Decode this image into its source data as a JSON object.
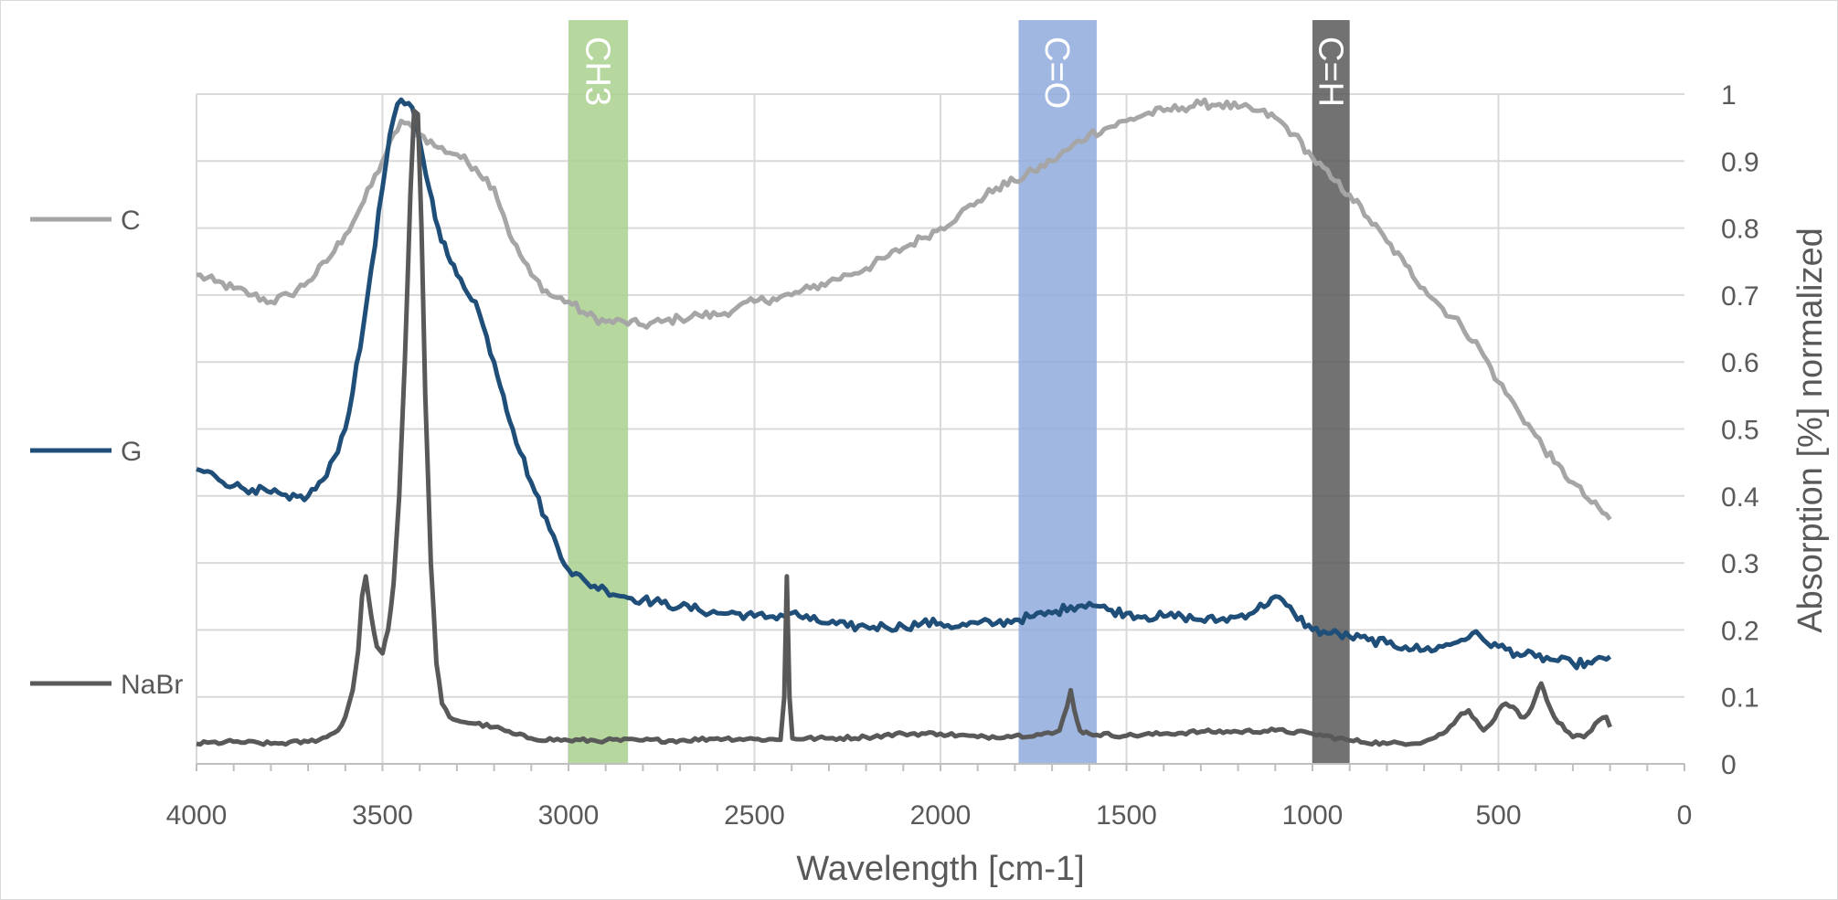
{
  "chart_data": {
    "type": "line",
    "title": "",
    "xlabel": "Wavelength [cm-1]",
    "ylabel": "Absorption [%] normalized",
    "xlim": [
      4000,
      0
    ],
    "ylim": [
      0,
      1
    ],
    "x_reversed": true,
    "y_axis_side": "right",
    "x_ticks": [
      4000,
      3500,
      3000,
      2500,
      2000,
      1500,
      1000,
      500,
      0
    ],
    "y_ticks": [
      0,
      0.1,
      0.2,
      0.3,
      0.4,
      0.5,
      0.6,
      0.7,
      0.8,
      0.9,
      1
    ],
    "grid": true,
    "legend": "left",
    "bands": [
      {
        "label": "CH3",
        "from": 3000,
        "to": 2840,
        "color": "#a9d18e",
        "opacity": 0.85
      },
      {
        "label": "C=O",
        "from": 1790,
        "to": 1580,
        "color": "#8faadc",
        "opacity": 0.85
      },
      {
        "label": "C=H",
        "from": 1000,
        "to": 900,
        "color": "#595959",
        "opacity": 0.85
      }
    ],
    "series": [
      {
        "name": "C",
        "color": "#a6a6a6",
        "points": [
          [
            4000,
            0.73
          ],
          [
            3950,
            0.72
          ],
          [
            3900,
            0.71
          ],
          [
            3850,
            0.7
          ],
          [
            3800,
            0.69
          ],
          [
            3750,
            0.7
          ],
          [
            3700,
            0.72
          ],
          [
            3650,
            0.75
          ],
          [
            3600,
            0.79
          ],
          [
            3550,
            0.84
          ],
          [
            3500,
            0.9
          ],
          [
            3450,
            0.96
          ],
          [
            3400,
            0.94
          ],
          [
            3350,
            0.92
          ],
          [
            3300,
            0.91
          ],
          [
            3250,
            0.89
          ],
          [
            3200,
            0.86
          ],
          [
            3175,
            0.82
          ],
          [
            3150,
            0.78
          ],
          [
            3100,
            0.73
          ],
          [
            3050,
            0.7
          ],
          [
            3000,
            0.69
          ],
          [
            2950,
            0.67
          ],
          [
            2900,
            0.66
          ],
          [
            2850,
            0.66
          ],
          [
            2800,
            0.655
          ],
          [
            2750,
            0.66
          ],
          [
            2700,
            0.665
          ],
          [
            2650,
            0.67
          ],
          [
            2600,
            0.67
          ],
          [
            2550,
            0.68
          ],
          [
            2500,
            0.69
          ],
          [
            2450,
            0.695
          ],
          [
            2400,
            0.7
          ],
          [
            2350,
            0.71
          ],
          [
            2300,
            0.72
          ],
          [
            2250,
            0.73
          ],
          [
            2200,
            0.74
          ],
          [
            2150,
            0.755
          ],
          [
            2100,
            0.77
          ],
          [
            2050,
            0.785
          ],
          [
            2000,
            0.8
          ],
          [
            1950,
            0.82
          ],
          [
            1900,
            0.84
          ],
          [
            1850,
            0.86
          ],
          [
            1800,
            0.87
          ],
          [
            1750,
            0.885
          ],
          [
            1700,
            0.9
          ],
          [
            1650,
            0.92
          ],
          [
            1600,
            0.94
          ],
          [
            1550,
            0.95
          ],
          [
            1500,
            0.96
          ],
          [
            1450,
            0.97
          ],
          [
            1400,
            0.975
          ],
          [
            1350,
            0.98
          ],
          [
            1300,
            0.985
          ],
          [
            1250,
            0.985
          ],
          [
            1200,
            0.98
          ],
          [
            1150,
            0.975
          ],
          [
            1100,
            0.965
          ],
          [
            1050,
            0.94
          ],
          [
            1000,
            0.905
          ],
          [
            950,
            0.875
          ],
          [
            900,
            0.85
          ],
          [
            850,
            0.815
          ],
          [
            800,
            0.78
          ],
          [
            750,
            0.745
          ],
          [
            700,
            0.71
          ],
          [
            650,
            0.68
          ],
          [
            600,
            0.655
          ],
          [
            550,
            0.62
          ],
          [
            500,
            0.57
          ],
          [
            450,
            0.53
          ],
          [
            400,
            0.49
          ],
          [
            350,
            0.45
          ],
          [
            300,
            0.42
          ],
          [
            250,
            0.39
          ],
          [
            200,
            0.365
          ]
        ]
      },
      {
        "name": "G",
        "color": "#1f4e79",
        "points": [
          [
            4000,
            0.44
          ],
          [
            3950,
            0.43
          ],
          [
            3900,
            0.415
          ],
          [
            3850,
            0.41
          ],
          [
            3800,
            0.405
          ],
          [
            3750,
            0.395
          ],
          [
            3700,
            0.4
          ],
          [
            3650,
            0.43
          ],
          [
            3600,
            0.5
          ],
          [
            3560,
            0.62
          ],
          [
            3530,
            0.74
          ],
          [
            3500,
            0.86
          ],
          [
            3480,
            0.94
          ],
          [
            3460,
            0.985
          ],
          [
            3440,
            0.985
          ],
          [
            3420,
            0.98
          ],
          [
            3400,
            0.93
          ],
          [
            3375,
            0.86
          ],
          [
            3350,
            0.8
          ],
          [
            3325,
            0.76
          ],
          [
            3300,
            0.73
          ],
          [
            3250,
            0.69
          ],
          [
            3200,
            0.6
          ],
          [
            3175,
            0.55
          ],
          [
            3150,
            0.5
          ],
          [
            3100,
            0.42
          ],
          [
            3050,
            0.35
          ],
          [
            3000,
            0.29
          ],
          [
            2950,
            0.27
          ],
          [
            2900,
            0.26
          ],
          [
            2850,
            0.25
          ],
          [
            2800,
            0.245
          ],
          [
            2750,
            0.24
          ],
          [
            2700,
            0.235
          ],
          [
            2650,
            0.23
          ],
          [
            2600,
            0.225
          ],
          [
            2550,
            0.225
          ],
          [
            2500,
            0.22
          ],
          [
            2450,
            0.22
          ],
          [
            2400,
            0.225
          ],
          [
            2350,
            0.215
          ],
          [
            2300,
            0.21
          ],
          [
            2250,
            0.205
          ],
          [
            2200,
            0.205
          ],
          [
            2150,
            0.205
          ],
          [
            2100,
            0.205
          ],
          [
            2050,
            0.21
          ],
          [
            2000,
            0.21
          ],
          [
            1950,
            0.205
          ],
          [
            1900,
            0.21
          ],
          [
            1850,
            0.21
          ],
          [
            1800,
            0.215
          ],
          [
            1750,
            0.22
          ],
          [
            1700,
            0.225
          ],
          [
            1650,
            0.235
          ],
          [
            1600,
            0.24
          ],
          [
            1550,
            0.23
          ],
          [
            1500,
            0.225
          ],
          [
            1450,
            0.22
          ],
          [
            1400,
            0.22
          ],
          [
            1350,
            0.22
          ],
          [
            1300,
            0.215
          ],
          [
            1250,
            0.215
          ],
          [
            1200,
            0.22
          ],
          [
            1150,
            0.23
          ],
          [
            1100,
            0.25
          ],
          [
            1050,
            0.225
          ],
          [
            1000,
            0.2
          ],
          [
            950,
            0.195
          ],
          [
            900,
            0.19
          ],
          [
            850,
            0.185
          ],
          [
            800,
            0.18
          ],
          [
            750,
            0.175
          ],
          [
            700,
            0.17
          ],
          [
            650,
            0.175
          ],
          [
            600,
            0.185
          ],
          [
            570,
            0.195
          ],
          [
            540,
            0.185
          ],
          [
            500,
            0.175
          ],
          [
            450,
            0.165
          ],
          [
            400,
            0.16
          ],
          [
            350,
            0.155
          ],
          [
            300,
            0.15
          ],
          [
            250,
            0.15
          ],
          [
            200,
            0.16
          ]
        ]
      },
      {
        "name": "NaBr",
        "color": "#595959",
        "points": [
          [
            4000,
            0.03
          ],
          [
            3900,
            0.033
          ],
          [
            3800,
            0.03
          ],
          [
            3700,
            0.033
          ],
          [
            3650,
            0.04
          ],
          [
            3620,
            0.05
          ],
          [
            3600,
            0.07
          ],
          [
            3580,
            0.11
          ],
          [
            3565,
            0.17
          ],
          [
            3555,
            0.25
          ],
          [
            3545,
            0.28
          ],
          [
            3530,
            0.22
          ],
          [
            3515,
            0.175
          ],
          [
            3500,
            0.165
          ],
          [
            3485,
            0.2
          ],
          [
            3470,
            0.27
          ],
          [
            3455,
            0.4
          ],
          [
            3440,
            0.6
          ],
          [
            3425,
            0.85
          ],
          [
            3415,
            0.975
          ],
          [
            3405,
            0.97
          ],
          [
            3395,
            0.8
          ],
          [
            3385,
            0.55
          ],
          [
            3370,
            0.3
          ],
          [
            3355,
            0.15
          ],
          [
            3340,
            0.09
          ],
          [
            3320,
            0.07
          ],
          [
            3300,
            0.065
          ],
          [
            3250,
            0.06
          ],
          [
            3200,
            0.055
          ],
          [
            3150,
            0.045
          ],
          [
            3100,
            0.038
          ],
          [
            3000,
            0.035
          ],
          [
            2900,
            0.035
          ],
          [
            2800,
            0.035
          ],
          [
            2700,
            0.035
          ],
          [
            2600,
            0.038
          ],
          [
            2500,
            0.037
          ],
          [
            2430,
            0.036
          ],
          [
            2420,
            0.1
          ],
          [
            2413,
            0.28
          ],
          [
            2406,
            0.1
          ],
          [
            2398,
            0.038
          ],
          [
            2300,
            0.038
          ],
          [
            2200,
            0.04
          ],
          [
            2100,
            0.045
          ],
          [
            2000,
            0.045
          ],
          [
            1900,
            0.04
          ],
          [
            1800,
            0.042
          ],
          [
            1700,
            0.045
          ],
          [
            1680,
            0.05
          ],
          [
            1660,
            0.085
          ],
          [
            1650,
            0.11
          ],
          [
            1640,
            0.08
          ],
          [
            1625,
            0.05
          ],
          [
            1600,
            0.045
          ],
          [
            1500,
            0.042
          ],
          [
            1400,
            0.045
          ],
          [
            1300,
            0.048
          ],
          [
            1200,
            0.048
          ],
          [
            1100,
            0.05
          ],
          [
            1000,
            0.045
          ],
          [
            900,
            0.035
          ],
          [
            800,
            0.03
          ],
          [
            700,
            0.033
          ],
          [
            650,
            0.045
          ],
          [
            620,
            0.06
          ],
          [
            600,
            0.075
          ],
          [
            580,
            0.08
          ],
          [
            560,
            0.065
          ],
          [
            540,
            0.05
          ],
          [
            520,
            0.06
          ],
          [
            500,
            0.08
          ],
          [
            480,
            0.09
          ],
          [
            460,
            0.085
          ],
          [
            440,
            0.07
          ],
          [
            420,
            0.075
          ],
          [
            400,
            0.1
          ],
          [
            385,
            0.12
          ],
          [
            370,
            0.095
          ],
          [
            350,
            0.07
          ],
          [
            320,
            0.05
          ],
          [
            300,
            0.04
          ],
          [
            270,
            0.04
          ],
          [
            250,
            0.05
          ],
          [
            230,
            0.065
          ],
          [
            210,
            0.07
          ],
          [
            200,
            0.055
          ]
        ]
      }
    ]
  }
}
